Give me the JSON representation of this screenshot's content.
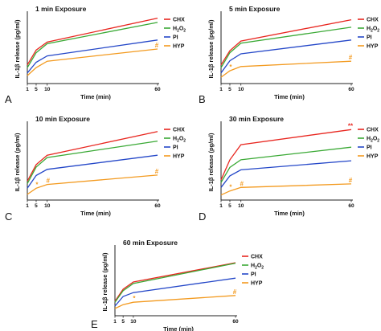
{
  "colors": {
    "CHX": "#e8261f",
    "H2O2": "#3aa935",
    "PI": "#2447c8",
    "HYP": "#f39a1f"
  },
  "chart_data": [
    {
      "type": "line",
      "letter": "A",
      "title": "1 min Exposure",
      "xlabel": "Time (min)",
      "ylabel": "IL-1β release (pg/ml)",
      "x": [
        1,
        5,
        10,
        60
      ],
      "x_ticks": [
        "1",
        "5",
        "10",
        "60"
      ],
      "ylim": [
        0,
        1300
      ],
      "series": [
        {
          "name": "CHX",
          "name_main": "CHX",
          "name_sub": "",
          "values": [
            350,
            630,
            780,
            1230
          ],
          "markers": []
        },
        {
          "name": "H2O2",
          "name_main": "H",
          "name_sub": "2",
          "name_tail": "O",
          "name_sub2": "2",
          "values": [
            300,
            580,
            750,
            1150
          ],
          "markers": []
        },
        {
          "name": "PI",
          "name_main": "PI",
          "name_sub": "",
          "values": [
            200,
            400,
            520,
            820
          ],
          "markers": []
        },
        {
          "name": "HYP",
          "name_main": "HYP",
          "name_sub": "",
          "values": [
            150,
            300,
            420,
            650
          ],
          "markers": [
            {
              "x": 60,
              "label": "#"
            }
          ]
        }
      ]
    },
    {
      "type": "line",
      "letter": "B",
      "title": "5 min Exposure",
      "xlabel": "Time (min)",
      "ylabel": "IL-1β release (pg/ml)",
      "x": [
        1,
        5,
        10,
        60
      ],
      "x_ticks": [
        "1",
        "5",
        "10",
        "60"
      ],
      "ylim": [
        0,
        1300
      ],
      "series": [
        {
          "name": "CHX",
          "name_main": "CHX",
          "name_sub": "",
          "values": [
            350,
            620,
            800,
            1200
          ],
          "markers": []
        },
        {
          "name": "H2O2",
          "name_main": "H",
          "name_sub": "2",
          "name_tail": "O",
          "name_sub2": "2",
          "values": [
            300,
            580,
            760,
            1060
          ],
          "markers": []
        },
        {
          "name": "PI",
          "name_main": "PI",
          "name_sub": "",
          "values": [
            200,
            430,
            560,
            820
          ],
          "markers": []
        },
        {
          "name": "HYP",
          "name_main": "HYP",
          "name_sub": "",
          "values": [
            120,
            240,
            320,
            420
          ],
          "markers": [
            {
              "x": 5,
              "label": "*"
            },
            {
              "x": 60,
              "label": "#"
            }
          ]
        }
      ]
    },
    {
      "type": "line",
      "letter": "C",
      "title": "10 min Exposure",
      "xlabel": "Time (min)",
      "ylabel": "IL-1β release (pg/ml)",
      "x": [
        1,
        5,
        10,
        60
      ],
      "x_ticks": [
        "1",
        "5",
        "10",
        "60"
      ],
      "ylim": [
        0,
        1600
      ],
      "series": [
        {
          "name": "CHX",
          "name_main": "CHX",
          "name_sub": "",
          "values": [
            400,
            750,
            950,
            1450
          ],
          "markers": []
        },
        {
          "name": "H2O2",
          "name_main": "H",
          "name_sub": "2",
          "name_tail": "O",
          "name_sub2": "2",
          "values": [
            350,
            700,
            900,
            1250
          ],
          "markers": []
        },
        {
          "name": "PI",
          "name_main": "PI",
          "name_sub": "",
          "values": [
            250,
            520,
            650,
            950
          ],
          "markers": []
        },
        {
          "name": "HYP",
          "name_main": "HYP",
          "name_sub": "",
          "values": [
            120,
            250,
            330,
            530
          ],
          "markers": [
            {
              "x": 5,
              "label": "*"
            },
            {
              "x": 10,
              "label": "#"
            },
            {
              "x": 60,
              "label": "#"
            }
          ]
        }
      ]
    },
    {
      "type": "line",
      "letter": "D",
      "title": "30 min Exposure",
      "xlabel": "Time (min)",
      "ylabel": "IL-1β release (pg/ml)",
      "x": [
        1,
        5,
        10,
        60
      ],
      "x_ticks": [
        "1",
        "5",
        "10",
        "60"
      ],
      "ylim": [
        0,
        1500
      ],
      "series": [
        {
          "name": "CHX",
          "name_main": "CHX",
          "name_sub": "",
          "values": [
            400,
            800,
            1100,
            1400
          ],
          "markers": [
            {
              "x": 60,
              "label": "**"
            }
          ]
        },
        {
          "name": "H2O2",
          "name_main": "H",
          "name_sub": "2",
          "name_tail": "O",
          "name_sub2": "2",
          "values": [
            350,
            650,
            800,
            1050
          ],
          "markers": []
        },
        {
          "name": "PI",
          "name_main": "PI",
          "name_sub": "",
          "values": [
            250,
            480,
            600,
            780
          ],
          "markers": []
        },
        {
          "name": "HYP",
          "name_main": "HYP",
          "name_sub": "",
          "values": [
            100,
            180,
            250,
            320
          ],
          "markers": [
            {
              "x": 5,
              "label": "*"
            },
            {
              "x": 10,
              "label": "#"
            },
            {
              "x": 60,
              "label": "#"
            }
          ]
        }
      ]
    },
    {
      "type": "line",
      "letter": "E",
      "title": "60 min Exposure",
      "xlabel": "Time (min)",
      "ylabel": "IL-1β release (pg/ml)",
      "x": [
        1,
        5,
        10,
        60
      ],
      "x_ticks": [
        "1",
        "5",
        "10",
        "60"
      ],
      "ylim": [
        0,
        1400
      ],
      "series": [
        {
          "name": "CHX",
          "name_main": "CHX",
          "name_sub": "",
          "values": [
            300,
            550,
            700,
            1100
          ],
          "markers": []
        },
        {
          "name": "H2O2",
          "name_main": "H",
          "name_sub": "2",
          "name_tail": "O",
          "name_sub2": "2",
          "values": [
            280,
            520,
            670,
            1090
          ],
          "markers": []
        },
        {
          "name": "PI",
          "name_main": "PI",
          "name_sub": "",
          "values": [
            200,
            400,
            480,
            780
          ],
          "markers": []
        },
        {
          "name": "HYP",
          "name_main": "HYP",
          "name_sub": "",
          "values": [
            150,
            230,
            280,
            420
          ],
          "markers": [
            {
              "x": 10,
              "label": "*"
            },
            {
              "x": 60,
              "label": "#"
            }
          ]
        }
      ]
    }
  ]
}
